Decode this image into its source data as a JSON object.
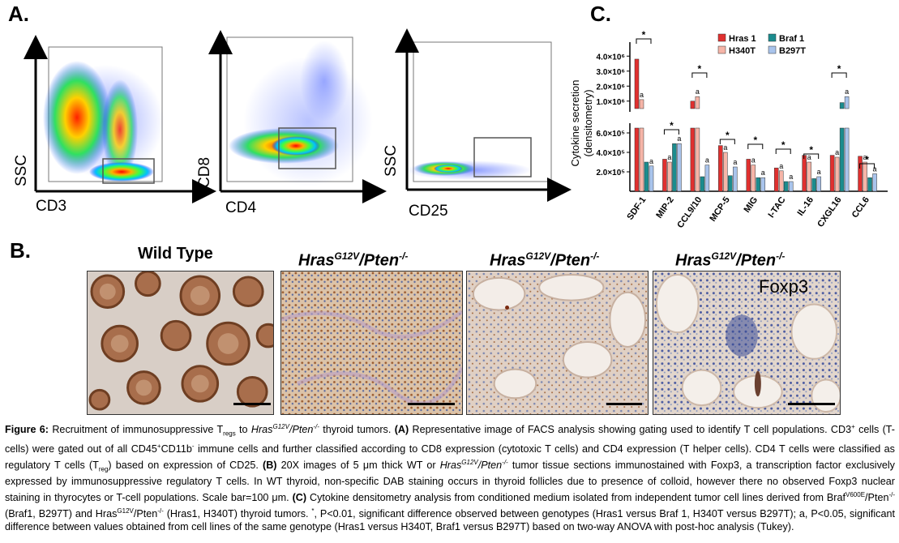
{
  "panels": {
    "a": "A.",
    "b": "B.",
    "c": "C."
  },
  "facs": {
    "plot1": {
      "x_label": "CD3",
      "y_label": "SSC"
    },
    "plot2": {
      "x_label": "CD4",
      "y_label": "CD8"
    },
    "plot3": {
      "x_label": "CD25",
      "y_label": "SSC"
    }
  },
  "histology": {
    "titles": [
      {
        "base": "Wild Type",
        "sup": "",
        "tail": ""
      },
      {
        "base": "Hras",
        "sup": "G12V",
        "tail": "/Pten",
        "sup2": "-/-"
      },
      {
        "base": "Hras",
        "sup": "G12V",
        "tail": "/Pten",
        "sup2": "-/-"
      },
      {
        "base": "Hras",
        "sup": "G12V",
        "tail": "/Pten",
        "sup2": "-/-"
      }
    ],
    "stain_label": "Foxp3"
  },
  "chart_data": {
    "type": "bar",
    "ylabel": "Cytokine secretion (densitometry)",
    "y_upper_ticks": [
      "4.0×10⁶",
      "3.0×10⁶",
      "2.0×10⁶",
      "1.0×10⁶"
    ],
    "y_lower_ticks": [
      "6.0×10⁵",
      "4.0×10⁵",
      "2.0×10⁵"
    ],
    "ylim_upper": [
      500000,
      4500000
    ],
    "ylim_lower": [
      0,
      650000
    ],
    "categories": [
      "SDF-1",
      "MIP-2",
      "CCL9/10",
      "MCP-5",
      "MIG",
      "I-TAC",
      "IL-16",
      "CXGL16",
      "CCL6"
    ],
    "series": [
      {
        "name": "Hras 1",
        "color": "#e0302f",
        "values": [
          3800000,
          330000,
          1000000,
          470000,
          330000,
          240000,
          370000,
          370000,
          360000
        ]
      },
      {
        "name": "H340T",
        "color": "#f6b5a8",
        "values": [
          1100000,
          300000,
          1300000,
          400000,
          270000,
          210000,
          300000,
          350000,
          300000
        ]
      },
      {
        "name": "Braf 1",
        "color": "#1b8c8e",
        "values": [
          300000,
          490000,
          150000,
          160000,
          140000,
          100000,
          130000,
          900000,
          140000
        ]
      },
      {
        "name": "B297T",
        "color": "#a9c4ec",
        "values": [
          260000,
          490000,
          270000,
          250000,
          140000,
          100000,
          150000,
          1300000,
          180000
        ]
      }
    ],
    "significance_star": "*",
    "significance_a": "a",
    "legend": "top-right"
  },
  "caption": {
    "figure_label": "Figure 6:",
    "text_1": " Recruitment of immunosuppressive T",
    "regs_sub": "regs",
    "text_2": " to ",
    "geno_a": "Hras",
    "geno_a_sup": "G12V",
    "geno_b": "/Pten",
    "geno_b_sup": "-/-",
    "text_3": " thyroid tumors. ",
    "a_label": "(A)",
    "text_4": " Representative image of FACS analysis showing gating used to identify T cell populations. CD3",
    "plus1": "+",
    "text_5": " cells (T-cells) were gated out of all CD45",
    "plus2": "+",
    "text_6": "CD11b",
    "minus1": "-",
    "text_7": " immune cells and further classified according to CD8 expression (cytotoxic T cells) and CD4 expression (T helper cells). CD4 T cells were classified as regulatory T cells (T",
    "reg_sub": "reg",
    "text_8": ") based on expression of CD25. ",
    "b_label": "(B)",
    "text_9": " 20X images of 5 μm thick WT or ",
    "geno2_a": "Hras",
    "geno2_a_sup": "G12V",
    "geno2_b": "/Pten",
    "geno2_b_sup": "-/-",
    "text_10": " tumor tissue sections immunostained with Foxp3, a transcription factor exclusively expressed by immunosuppressive regulatory T cells. In WT thyroid, non-specific DAB staining occurs in thyroid follicles due to presence of colloid, however there no observed Foxp3 nuclear staining in thyrocytes or T-cell populations. Scale bar=100 μm. ",
    "c_label": "(C)",
    "text_11": " Cytokine densitometry analysis from conditioned medium isolated from independent tumor cell lines derived from Braf",
    "v600e_sup": "V600E",
    "text_12": "/Pten",
    "pten_sup1": "-/-",
    "text_13": " (Braf1, B297T) and Hras",
    "g12v_sup": "G12V",
    "text_14": "/Pten",
    "pten_sup2": "-/-",
    "text_15": " (Hras1, H340T) thyroid tumors. ",
    "star_sup": "*",
    "text_16": ", P<0.01, significant difference observed between genotypes (Hras1 versus Braf 1, H340T versus B297T); a, P<0.05, significant difference between values obtained from cell lines of the same genotype (Hras1 versus H340T, Braf1 versus B297T) based on two-way ANOVA with post-hoc analysis (Tukey)."
  }
}
